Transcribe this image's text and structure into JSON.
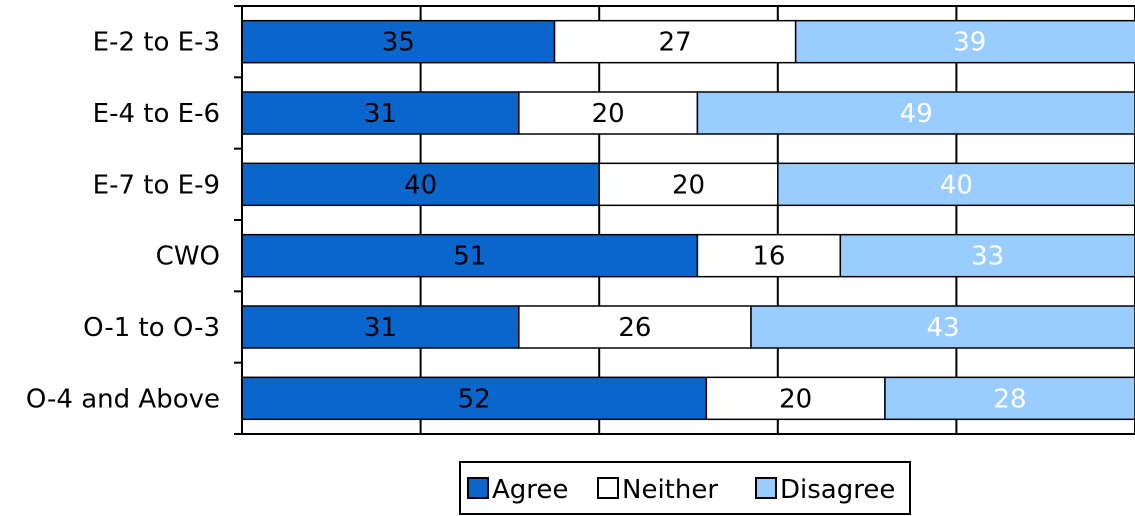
{
  "chart_data": {
    "type": "bar",
    "orientation": "horizontal",
    "stacked": true,
    "categories": [
      "E-2 to E-3",
      "E-4 to E-6",
      "E-7 to E-9",
      "CWO",
      "O-1 to O-3",
      "O-4 and Above"
    ],
    "series": [
      {
        "name": "Agree",
        "values": [
          35,
          31,
          40,
          51,
          31,
          52
        ],
        "color": "#0a66cc",
        "label_color": "#000000"
      },
      {
        "name": "Neither",
        "values": [
          27,
          20,
          20,
          16,
          26,
          20
        ],
        "color": "#ffffff",
        "label_color": "#000000"
      },
      {
        "name": "Disagree",
        "values": [
          39,
          49,
          40,
          33,
          43,
          28
        ],
        "color": "#99ccff",
        "label_color": "#ffffff"
      }
    ],
    "xlim": [
      0,
      100
    ],
    "x_gridlines": [
      0,
      20,
      40,
      60,
      80,
      100
    ],
    "grid": true,
    "legend_position": "bottom"
  }
}
